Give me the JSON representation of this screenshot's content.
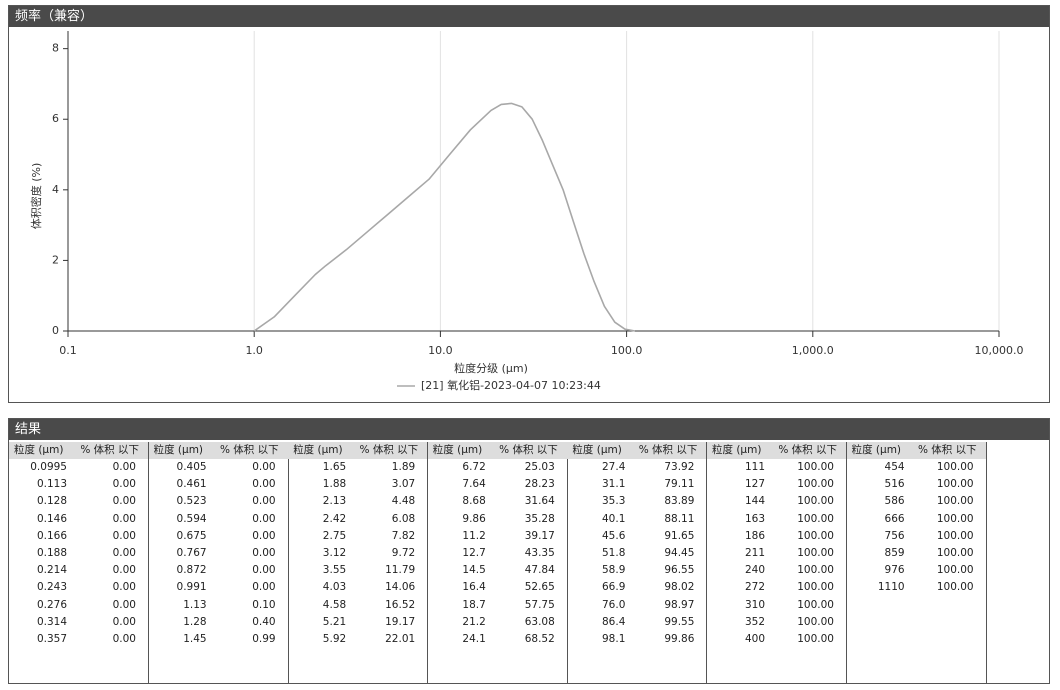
{
  "panel_title": "频率（兼容）",
  "chart_data": {
    "type": "line",
    "xlabel": "粒度分级 (μm)",
    "ylabel": "体积密度 (%)",
    "xscale": "log",
    "grid": "x",
    "xlim": [
      0.1,
      10000
    ],
    "ylim": [
      0,
      8.5
    ],
    "xticks": [
      0.1,
      {
        "value": 1,
        "label": "1.0"
      },
      {
        "value": 10,
        "label": "10.0"
      },
      {
        "value": 100,
        "label": "100.0"
      },
      {
        "value": 1000,
        "label": "1,000.0"
      },
      {
        "value": 10000,
        "label": "10,000.0"
      }
    ],
    "yticks": [
      0,
      2,
      4,
      6,
      8
    ],
    "x": [
      1.0,
      1.28,
      1.65,
      2.13,
      2.42,
      3.12,
      4.03,
      5.21,
      6.72,
      8.68,
      11.2,
      14.5,
      18.7,
      21.2,
      24.1,
      27.4,
      31.1,
      35.3,
      40.1,
      45.6,
      51.8,
      58.9,
      66.9,
      76.0,
      86.4,
      98.1,
      111
    ],
    "series": [
      {
        "name": "[21] 氧化铝-2023-04-07 10:23:44",
        "color": "#a8a8a8",
        "values": [
          0,
          0.4,
          1.0,
          1.6,
          1.85,
          2.3,
          2.8,
          3.3,
          3.8,
          4.3,
          5.0,
          5.7,
          6.25,
          6.42,
          6.45,
          6.35,
          6.0,
          5.4,
          4.7,
          4.0,
          3.1,
          2.2,
          1.4,
          0.7,
          0.25,
          0.05,
          0
        ]
      }
    ]
  },
  "results": {
    "title": "结果",
    "headers": [
      "粒度 (μm)",
      "% 体积 以下"
    ],
    "groups": [
      [
        [
          "0.0995",
          "0.00"
        ],
        [
          "0.113",
          "0.00"
        ],
        [
          "0.128",
          "0.00"
        ],
        [
          "0.146",
          "0.00"
        ],
        [
          "0.166",
          "0.00"
        ],
        [
          "0.188",
          "0.00"
        ],
        [
          "0.214",
          "0.00"
        ],
        [
          "0.243",
          "0.00"
        ],
        [
          "0.276",
          "0.00"
        ],
        [
          "0.314",
          "0.00"
        ],
        [
          "0.357",
          "0.00"
        ]
      ],
      [
        [
          "0.405",
          "0.00"
        ],
        [
          "0.461",
          "0.00"
        ],
        [
          "0.523",
          "0.00"
        ],
        [
          "0.594",
          "0.00"
        ],
        [
          "0.675",
          "0.00"
        ],
        [
          "0.767",
          "0.00"
        ],
        [
          "0.872",
          "0.00"
        ],
        [
          "0.991",
          "0.00"
        ],
        [
          "1.13",
          "0.10"
        ],
        [
          "1.28",
          "0.40"
        ],
        [
          "1.45",
          "0.99"
        ]
      ],
      [
        [
          "1.65",
          "1.89"
        ],
        [
          "1.88",
          "3.07"
        ],
        [
          "2.13",
          "4.48"
        ],
        [
          "2.42",
          "6.08"
        ],
        [
          "2.75",
          "7.82"
        ],
        [
          "3.12",
          "9.72"
        ],
        [
          "3.55",
          "11.79"
        ],
        [
          "4.03",
          "14.06"
        ],
        [
          "4.58",
          "16.52"
        ],
        [
          "5.21",
          "19.17"
        ],
        [
          "5.92",
          "22.01"
        ]
      ],
      [
        [
          "6.72",
          "25.03"
        ],
        [
          "7.64",
          "28.23"
        ],
        [
          "8.68",
          "31.64"
        ],
        [
          "9.86",
          "35.28"
        ],
        [
          "11.2",
          "39.17"
        ],
        [
          "12.7",
          "43.35"
        ],
        [
          "14.5",
          "47.84"
        ],
        [
          "16.4",
          "52.65"
        ],
        [
          "18.7",
          "57.75"
        ],
        [
          "21.2",
          "63.08"
        ],
        [
          "24.1",
          "68.52"
        ]
      ],
      [
        [
          "27.4",
          "73.92"
        ],
        [
          "31.1",
          "79.11"
        ],
        [
          "35.3",
          "83.89"
        ],
        [
          "40.1",
          "88.11"
        ],
        [
          "45.6",
          "91.65"
        ],
        [
          "51.8",
          "94.45"
        ],
        [
          "58.9",
          "96.55"
        ],
        [
          "66.9",
          "98.02"
        ],
        [
          "76.0",
          "98.97"
        ],
        [
          "86.4",
          "99.55"
        ],
        [
          "98.1",
          "99.86"
        ]
      ],
      [
        [
          "111",
          "100.00"
        ],
        [
          "127",
          "100.00"
        ],
        [
          "144",
          "100.00"
        ],
        [
          "163",
          "100.00"
        ],
        [
          "186",
          "100.00"
        ],
        [
          "211",
          "100.00"
        ],
        [
          "240",
          "100.00"
        ],
        [
          "272",
          "100.00"
        ],
        [
          "310",
          "100.00"
        ],
        [
          "352",
          "100.00"
        ],
        [
          "400",
          "100.00"
        ]
      ],
      [
        [
          "454",
          "100.00"
        ],
        [
          "516",
          "100.00"
        ],
        [
          "586",
          "100.00"
        ],
        [
          "666",
          "100.00"
        ],
        [
          "756",
          "100.00"
        ],
        [
          "859",
          "100.00"
        ],
        [
          "976",
          "100.00"
        ],
        [
          "1110",
          "100.00"
        ]
      ]
    ]
  }
}
